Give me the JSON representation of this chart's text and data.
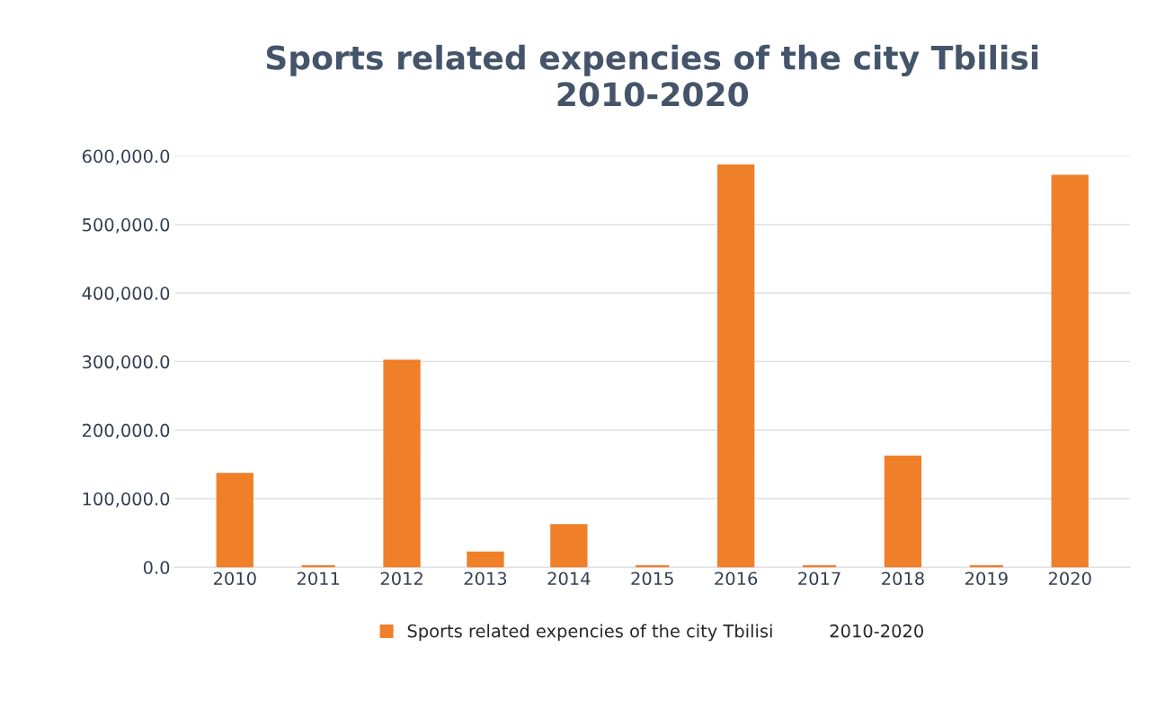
{
  "chart_data": {
    "type": "bar",
    "title": "Sports related expencies of the city Tbilisi\n2010-2020",
    "categories": [
      "2010",
      "2011",
      "2012",
      "2013",
      "2014",
      "2015",
      "2016",
      "2017",
      "2018",
      "2019",
      "2020"
    ],
    "series": [
      {
        "name": "Sports related expencies of the city Tbilisi          2010-2020",
        "color": "#f07f2a",
        "values": [
          135000,
          0,
          300000,
          20000,
          60000,
          0,
          585000,
          0,
          160000,
          0,
          570000
        ]
      }
    ],
    "ylim": [
      0,
      600000
    ],
    "yticks": [
      {
        "value": 0,
        "label": "0.0"
      },
      {
        "value": 100000,
        "label": "100,000.0"
      },
      {
        "value": 200000,
        "label": "200,000.0"
      },
      {
        "value": 300000,
        "label": "300,000.0"
      },
      {
        "value": 400000,
        "label": "400,000.0"
      },
      {
        "value": 500000,
        "label": "500,000.0"
      },
      {
        "value": 600000,
        "label": "600,000.0"
      }
    ],
    "grid": "y",
    "legend": "bottom"
  }
}
